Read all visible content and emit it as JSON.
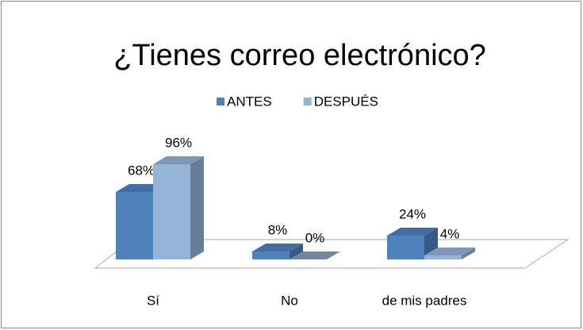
{
  "chart_data": {
    "type": "bar3d",
    "title": "¿Tienes correo electrónico?",
    "categories": [
      "Sí",
      "No",
      "de mis padres"
    ],
    "series": [
      {
        "name": "ANTES",
        "color": "#4f81bd",
        "values": [
          68,
          8,
          24
        ],
        "value_labels": [
          "68%",
          "8%",
          "24%"
        ]
      },
      {
        "name": "DESPUÉS",
        "color": "#95b3d7",
        "values": [
          96,
          0,
          4
        ],
        "value_labels": [
          "96%",
          "0%",
          "4%"
        ]
      }
    ],
    "legend": "top"
  }
}
